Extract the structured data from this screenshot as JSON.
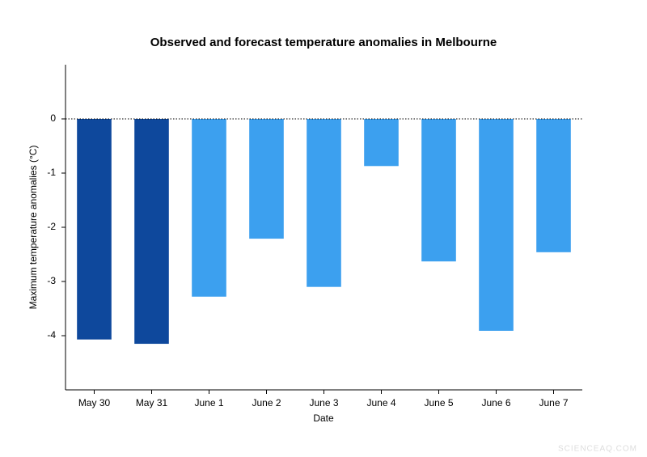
{
  "chart_data": {
    "type": "bar",
    "title": "Observed and forecast temperature anomalies in Melbourne",
    "x_label": "Date",
    "y_label": "Maximum temperature anomalies (°C)",
    "categories": [
      "May 30",
      "May 31",
      "June 1",
      "June 2",
      "June 3",
      "June 4",
      "June 5",
      "June 6",
      "June 7"
    ],
    "values": [
      -4.07,
      -4.15,
      -3.28,
      -2.21,
      -3.1,
      -0.87,
      -2.63,
      -3.91,
      -2.46
    ],
    "colors": [
      "#0e489c",
      "#0e489c",
      "#3ca0ef",
      "#3ca0ef",
      "#3ca0ef",
      "#3ca0ef",
      "#3ca0ef",
      "#3ca0ef",
      "#3ca0ef"
    ],
    "ylim": [
      -5,
      1
    ],
    "yticks": [
      0,
      -1,
      -2,
      -3,
      -4
    ],
    "grid": false
  },
  "watermark": "SCIENCEAQ.COM"
}
